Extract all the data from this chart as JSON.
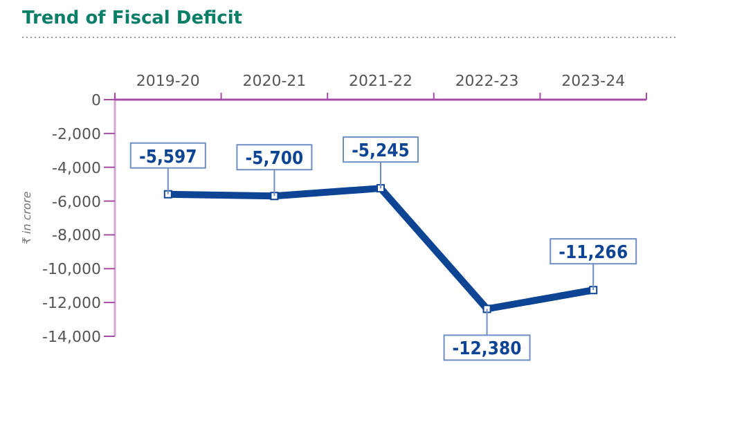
{
  "chart_data": {
    "type": "line",
    "title": "Trend of Fiscal Deficit",
    "ylabel": "₹ in crore",
    "categories": [
      "2019-20",
      "2020-21",
      "2021-22",
      "2022-23",
      "2023-24"
    ],
    "series": [
      {
        "color": "#0d4493",
        "values": [
          -5597,
          -5700,
          -5245,
          -12380,
          -11266
        ]
      }
    ],
    "ylim": [
      -14000,
      0
    ],
    "yticks": [
      0,
      {
        "value": -2000,
        "label": "-2,000"
      },
      {
        "value": -4000,
        "label": "-4,000"
      },
      {
        "value": -6000,
        "label": "-6,000"
      },
      {
        "value": -8000,
        "label": "-8,000"
      },
      {
        "value": -10000,
        "label": "-10,000"
      },
      {
        "value": -12000,
        "label": "-12,000"
      },
      {
        "value": -14000,
        "label": "-14,000"
      }
    ],
    "value_labels": [
      "-5,597",
      "-5,700",
      "-5,245",
      "-12,380",
      "-11,266"
    ],
    "marker": "square"
  }
}
